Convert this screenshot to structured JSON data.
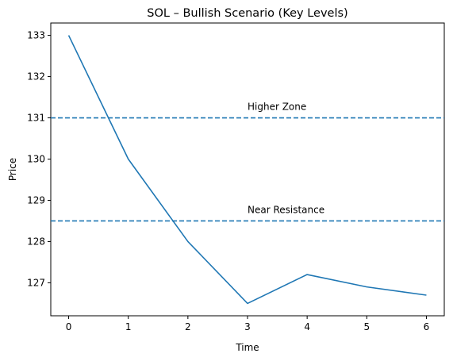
{
  "chart_data": {
    "type": "line",
    "title": "SOL – Bullish Scenario (Key Levels)",
    "xlabel": "Time",
    "ylabel": "Price",
    "x": [
      0,
      1,
      2,
      3,
      4,
      5,
      6
    ],
    "series": [
      {
        "values": [
          133.0,
          130.0,
          128.0,
          126.5,
          127.2,
          126.9,
          126.7
        ],
        "color": "#1f77b4"
      }
    ],
    "xlim": [
      -0.3,
      6.3
    ],
    "ylim": [
      126.2,
      133.3
    ],
    "xticks": [
      "0",
      "1",
      "2",
      "3",
      "4",
      "5",
      "6"
    ],
    "yticks": [
      "127",
      "128",
      "129",
      "130",
      "131",
      "132",
      "133"
    ],
    "hlines": [
      {
        "y": 131.0,
        "label": "Higher Zone",
        "label_x": 3,
        "style": "dashed",
        "color": "#1f77b4"
      },
      {
        "y": 128.5,
        "label": "Near Resistance",
        "label_x": 3,
        "style": "dashed",
        "color": "#1f77b4"
      }
    ],
    "grid": false,
    "legend": "none"
  }
}
